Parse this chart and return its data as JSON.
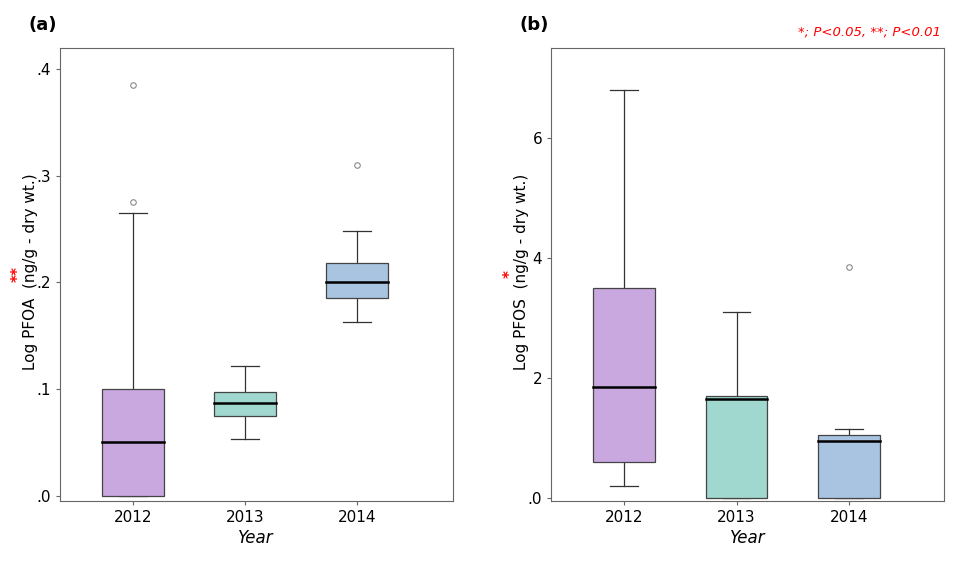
{
  "panel_a": {
    "label": "(a)",
    "ylabel_star": "**",
    "ylabel_main": " Log PFOA  (ng/g - dry wt.)",
    "xlabel": "Year",
    "ylim": [
      -0.005,
      0.42
    ],
    "yticks": [
      0.0,
      0.1,
      0.2,
      0.3,
      0.4
    ],
    "yticklabels": [
      ".0",
      ".1",
      ".2",
      ".3",
      ".4"
    ],
    "boxes": [
      {
        "year": "2012",
        "color": "#C9A8E0",
        "edgecolor": "#444444",
        "q1": 0.0,
        "median": 0.05,
        "q3": 0.1,
        "whislo": 0.0,
        "whishi": 0.265,
        "fliers": [
          0.275,
          0.385
        ]
      },
      {
        "year": "2013",
        "color": "#A0D8CF",
        "edgecolor": "#444444",
        "q1": 0.075,
        "median": 0.087,
        "q3": 0.097,
        "whislo": 0.053,
        "whishi": 0.122,
        "fliers": []
      },
      {
        "year": "2014",
        "color": "#A8C4E0",
        "edgecolor": "#444444",
        "q1": 0.185,
        "median": 0.2,
        "q3": 0.218,
        "whislo": 0.163,
        "whishi": 0.248,
        "fliers": [
          0.31
        ]
      }
    ]
  },
  "panel_b": {
    "label": "(b)",
    "ylabel_star": "*",
    "ylabel_main": " Log PFOS  (ng/g - dry wt.)",
    "xlabel": "Year",
    "ylim": [
      -0.05,
      7.5
    ],
    "yticks": [
      0.0,
      2.0,
      4.0,
      6.0
    ],
    "yticklabels": [
      ".0",
      "2",
      "4",
      "6"
    ],
    "annotation": "*; ρ<0.05, **; ρ<0.01",
    "annotation_text": "*; P<0.05, **; P<0.01",
    "boxes": [
      {
        "year": "2012",
        "color": "#C9A8E0",
        "edgecolor": "#444444",
        "q1": 0.6,
        "median": 1.85,
        "q3": 3.5,
        "whislo": 0.2,
        "whishi": 6.8,
        "fliers": []
      },
      {
        "year": "2013",
        "color": "#A0D8CF",
        "edgecolor": "#444444",
        "q1": 0.0,
        "median": 1.65,
        "q3": 1.7,
        "whislo": 0.0,
        "whishi": 3.1,
        "fliers": []
      },
      {
        "year": "2014",
        "color": "#A8C4E0",
        "edgecolor": "#444444",
        "q1": 0.0,
        "median": 0.95,
        "q3": 1.05,
        "whislo": 0.0,
        "whishi": 1.15,
        "fliers": [
          3.85
        ]
      }
    ]
  },
  "figure_bg": "#ffffff",
  "ax_bg": "#ffffff",
  "box_width": 0.55,
  "flier_marker": "o",
  "flier_size": 4,
  "flier_color": "#888888",
  "median_color": "#000000",
  "whisker_color": "#333333",
  "cap_color": "#333333",
  "tick_fontsize": 11,
  "label_fontsize": 11,
  "panel_label_fontsize": 13
}
